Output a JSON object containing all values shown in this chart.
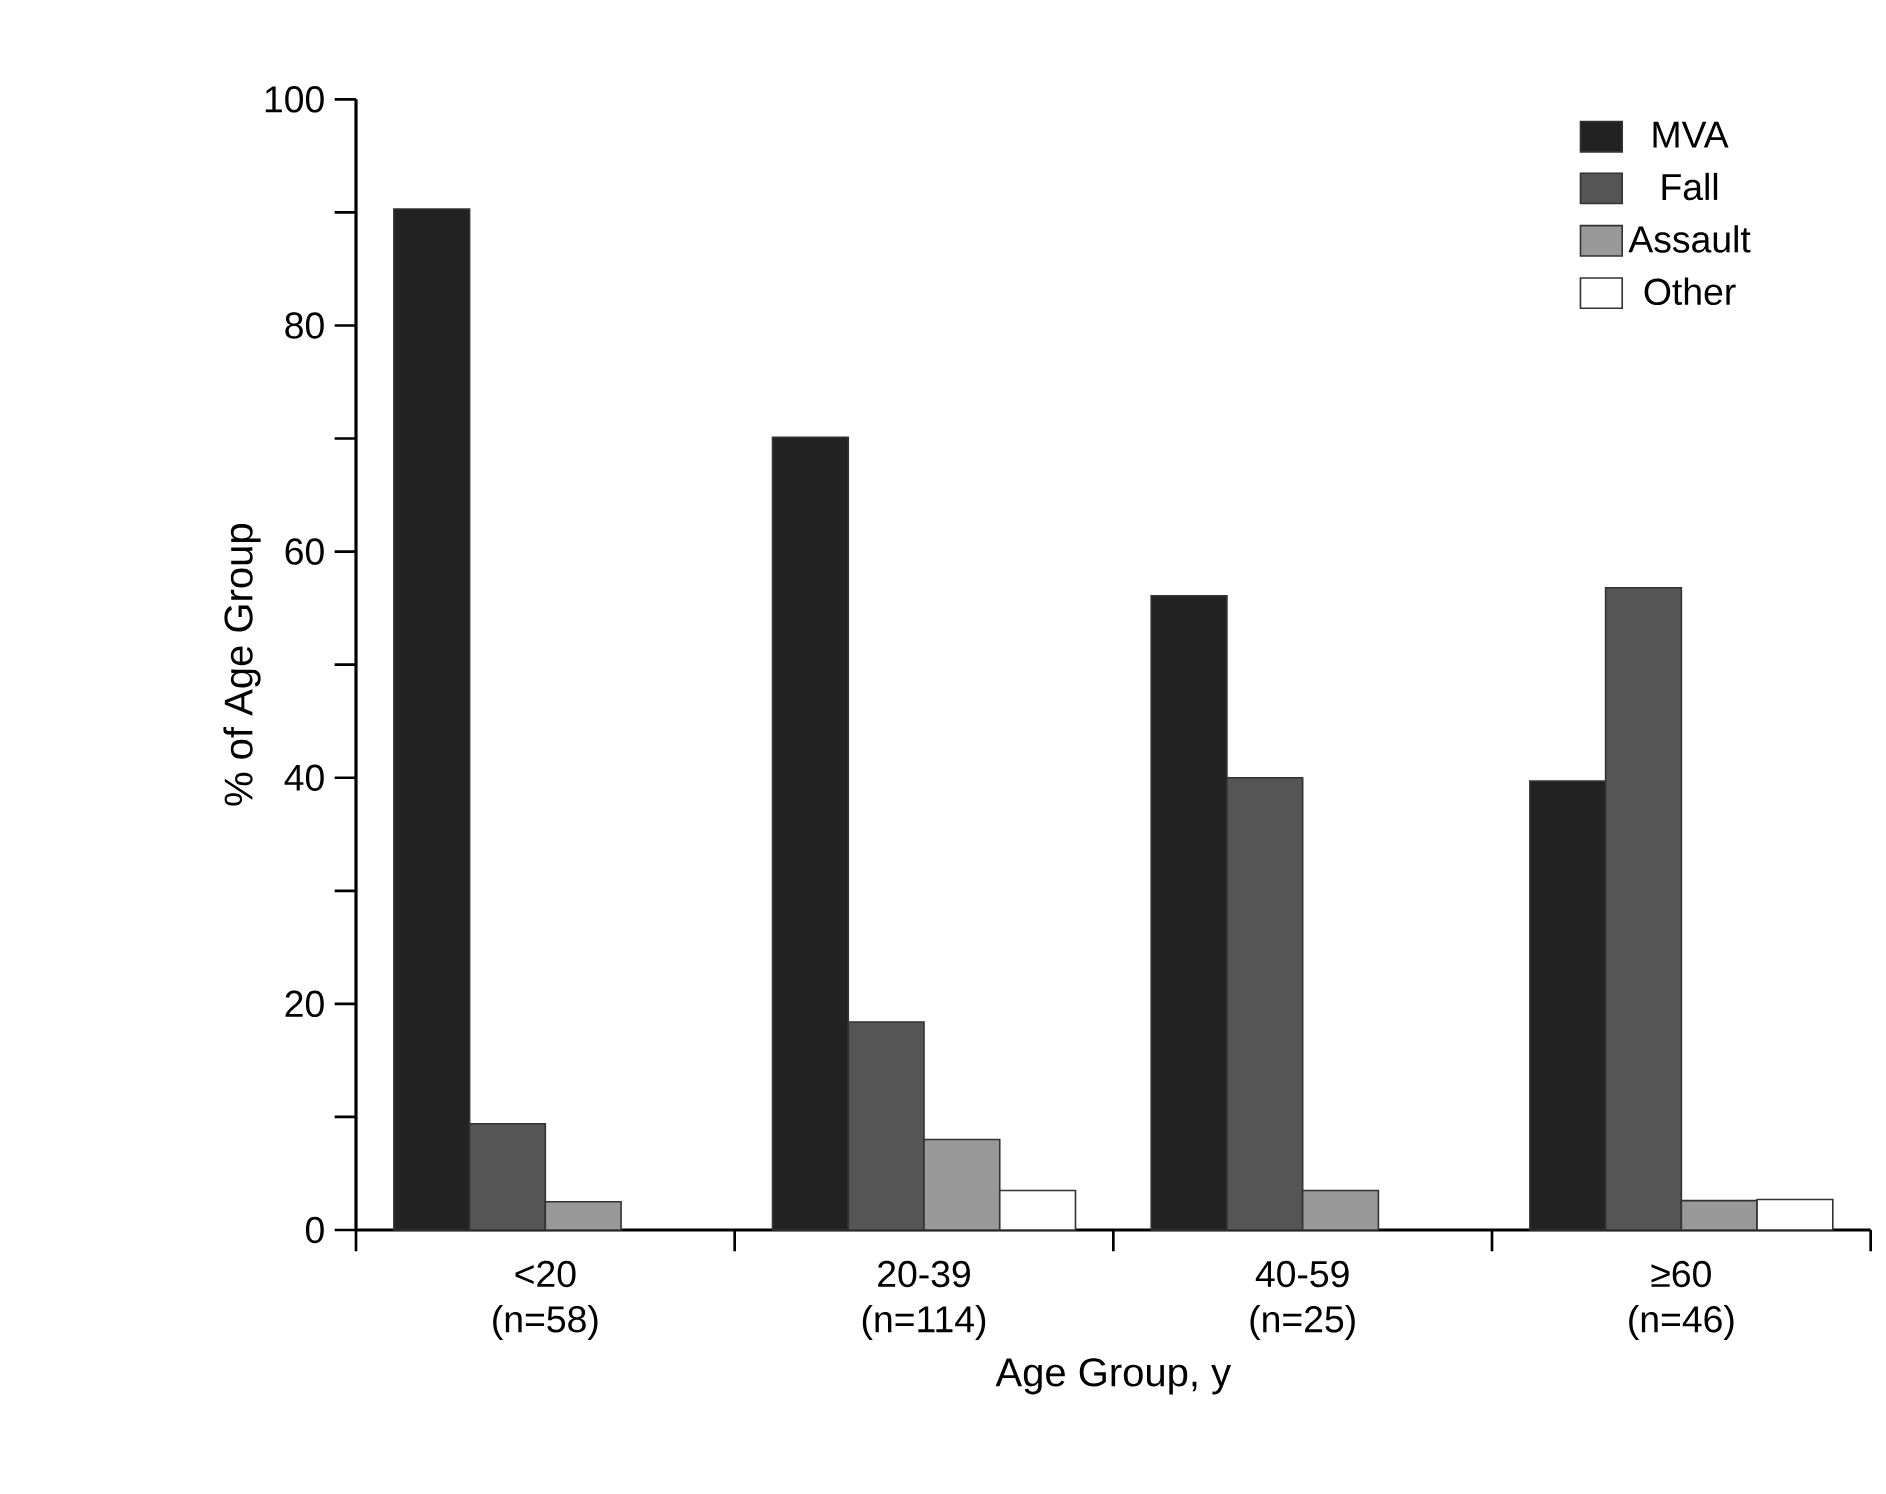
{
  "chart_data": {
    "type": "bar",
    "xlabel": "Age Group, y",
    "ylabel": "% of Age Group",
    "categories": [
      "<20 (n=58)",
      "20-39 (n=114)",
      "40-59 (n=25)",
      "≥60 (n=46)"
    ],
    "series": [
      {
        "name": "MVA",
        "color": "#222222",
        "values": [
          90.3,
          70.1,
          56.1,
          39.7
        ]
      },
      {
        "name": "Fall",
        "color": "#555555",
        "values": [
          9.4,
          18.4,
          40.0,
          56.8
        ]
      },
      {
        "name": "Assault",
        "color": "#999999",
        "values": [
          2.5,
          8.0,
          3.5,
          2.6
        ]
      },
      {
        "name": "Other",
        "color": "#ffffff",
        "values": [
          null,
          3.5,
          null,
          2.7
        ]
      }
    ],
    "ylim": [
      0,
      100
    ],
    "yticks": [
      0,
      {
        "value": 10,
        "label": null
      },
      20,
      {
        "value": 30,
        "label": null
      },
      40,
      {
        "value": 50,
        "label": null
      },
      60,
      {
        "value": 70,
        "label": null
      },
      80,
      {
        "value": 90,
        "label": null
      },
      100
    ],
    "legend": "top right",
    "grid": false
  }
}
